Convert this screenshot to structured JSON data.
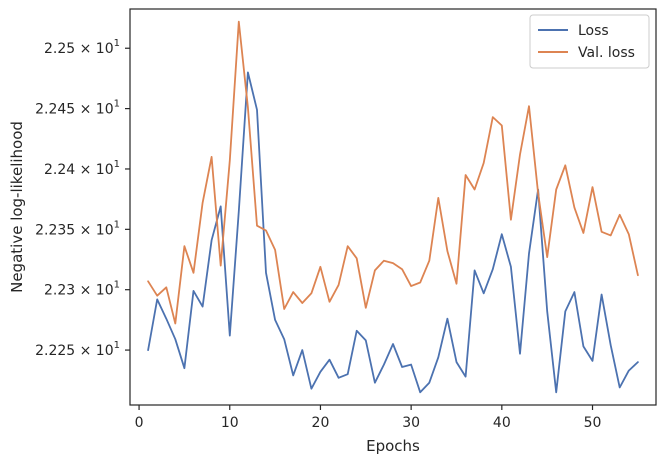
{
  "chart_data": {
    "type": "line",
    "xlabel": "Epochs",
    "ylabel": "Negative log-likelihood",
    "xlim": [
      -1,
      57
    ],
    "ylim": [
      22.2045,
      22.5325
    ],
    "x_ticks": [
      0,
      10,
      20,
      30,
      40,
      50
    ],
    "x_tick_labels": [
      "0",
      "10",
      "20",
      "30",
      "40",
      "50"
    ],
    "y_ticks": [
      22.25,
      22.3,
      22.35,
      22.4,
      22.45,
      22.5
    ],
    "y_tick_mantissas": [
      "2.225",
      "2.23",
      "2.235",
      "2.24",
      "2.245",
      "2.25"
    ],
    "y_tick_exponent_text": "× 10",
    "y_tick_exponent": "1",
    "grid": false,
    "legend_position": "top-right",
    "series": [
      {
        "name": "Loss",
        "color": "#4c72b0",
        "x": [
          1,
          2,
          3,
          4,
          5,
          6,
          7,
          8,
          9,
          10,
          11,
          12,
          13,
          14,
          15,
          16,
          17,
          18,
          19,
          20,
          21,
          22,
          23,
          24,
          25,
          26,
          27,
          28,
          29,
          30,
          31,
          32,
          33,
          34,
          35,
          36,
          37,
          38,
          39,
          40,
          41,
          42,
          43,
          44,
          45,
          46,
          47,
          48,
          49,
          50,
          51,
          52,
          53,
          54,
          55
        ],
        "values": [
          22.25,
          22.292,
          22.276,
          22.259,
          22.235,
          22.299,
          22.286,
          22.341,
          22.369,
          22.262,
          22.365,
          22.48,
          22.449,
          22.314,
          22.275,
          22.259,
          22.229,
          22.25,
          22.218,
          22.232,
          22.242,
          22.227,
          22.23,
          22.266,
          22.258,
          22.223,
          22.238,
          22.255,
          22.236,
          22.238,
          22.215,
          22.223,
          22.244,
          22.276,
          22.24,
          22.228,
          22.316,
          22.297,
          22.317,
          22.346,
          22.319,
          22.247,
          22.33,
          22.383,
          22.282,
          22.215,
          22.282,
          22.298,
          22.253,
          22.241,
          22.296,
          22.254,
          22.219,
          22.233,
          22.24
        ]
      },
      {
        "name": "Val. loss",
        "color": "#dd8452",
        "x": [
          1,
          2,
          3,
          4,
          5,
          6,
          7,
          8,
          9,
          10,
          11,
          12,
          13,
          14,
          15,
          16,
          17,
          18,
          19,
          20,
          21,
          22,
          23,
          24,
          25,
          26,
          27,
          28,
          29,
          30,
          31,
          32,
          33,
          34,
          35,
          36,
          37,
          38,
          39,
          40,
          41,
          42,
          43,
          44,
          45,
          46,
          47,
          48,
          49,
          50,
          51,
          52,
          53,
          54,
          55
        ],
        "values": [
          22.307,
          22.295,
          22.302,
          22.272,
          22.336,
          22.314,
          22.372,
          22.41,
          22.32,
          22.407,
          22.522,
          22.451,
          22.353,
          22.349,
          22.333,
          22.284,
          22.298,
          22.289,
          22.297,
          22.319,
          22.29,
          22.304,
          22.336,
          22.326,
          22.285,
          22.316,
          22.324,
          22.322,
          22.317,
          22.303,
          22.306,
          22.324,
          22.376,
          22.332,
          22.305,
          22.395,
          22.383,
          22.405,
          22.443,
          22.436,
          22.358,
          22.412,
          22.452,
          22.38,
          22.327,
          22.383,
          22.403,
          22.368,
          22.347,
          22.385,
          22.348,
          22.345,
          22.362,
          22.346,
          22.312
        ]
      }
    ]
  }
}
